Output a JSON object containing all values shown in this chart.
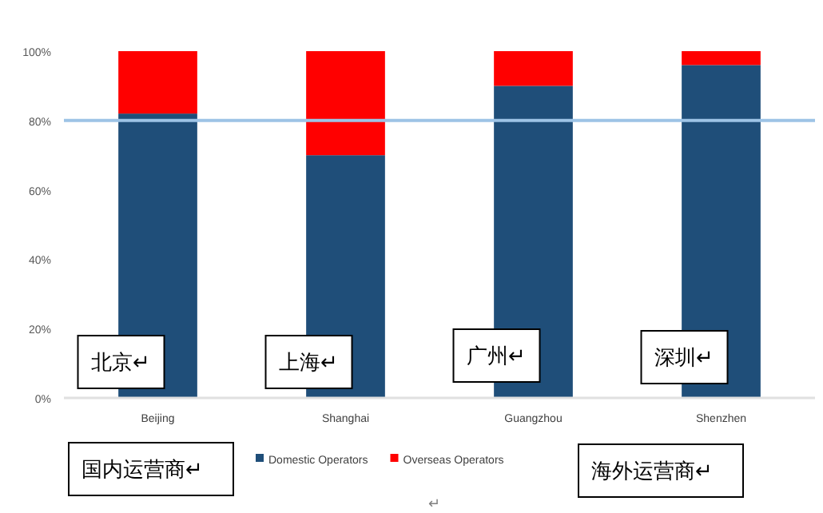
{
  "chart_data": {
    "type": "bar",
    "stacked": true,
    "categories": [
      "Beijing",
      "Shanghai",
      "Guangzhou",
      "Shenzhen"
    ],
    "series": [
      {
        "name": "Domestic Operators",
        "color": "#1f4e79",
        "values": [
          82,
          70,
          90,
          96
        ]
      },
      {
        "name": "Overseas Operators",
        "color": "#ff0000",
        "values": [
          18,
          30,
          10,
          4
        ]
      }
    ],
    "ylim": [
      0,
      100
    ],
    "yticks": [
      {
        "value": 0,
        "label": "0%"
      },
      {
        "value": 20,
        "label": "20%"
      },
      {
        "value": 40,
        "label": "40%"
      },
      {
        "value": 60,
        "label": "60%"
      },
      {
        "value": 80,
        "label": "80%"
      },
      {
        "value": 100,
        "label": "100%"
      }
    ],
    "ref_lines": [
      {
        "axis": "y",
        "value": 80,
        "color": "#9dc3e6"
      }
    ],
    "legend": "bottom",
    "annotations": [
      "北京↵",
      "上海↵",
      "广州↵",
      "深圳↵",
      "国内运营商↵",
      "海外运营商↵",
      "↵"
    ]
  }
}
